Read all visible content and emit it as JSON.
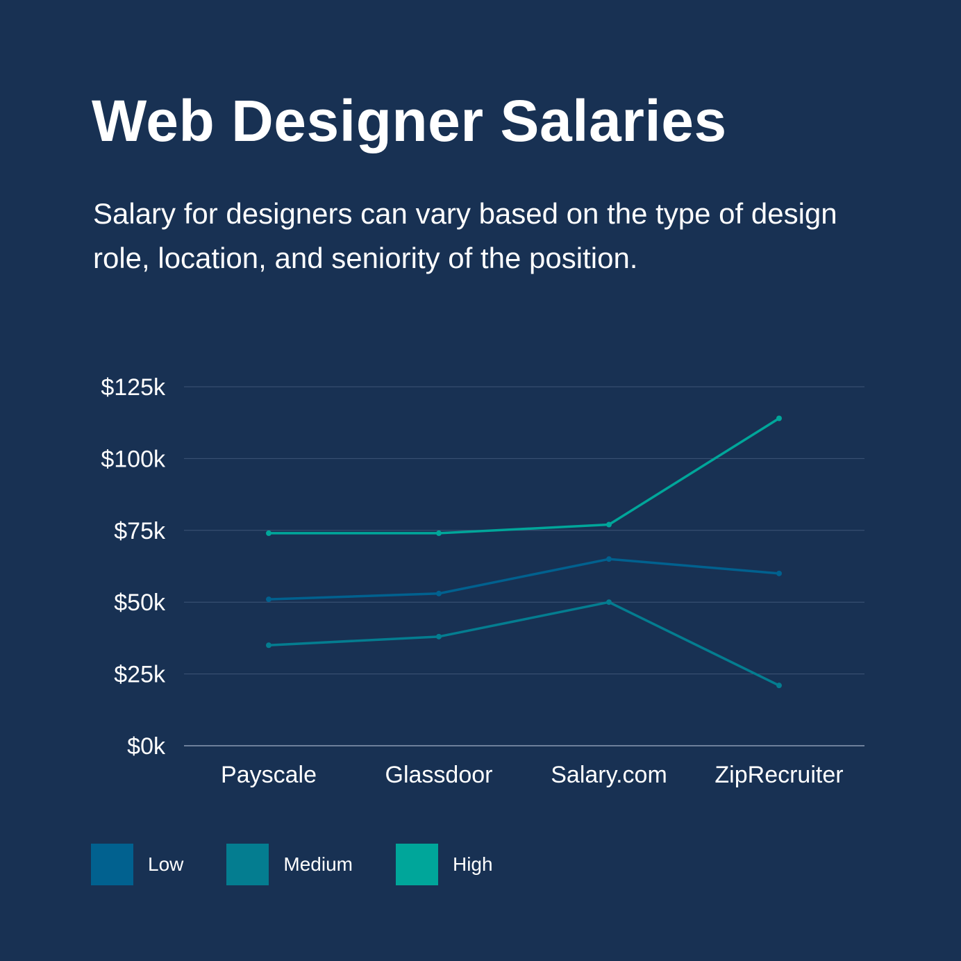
{
  "title": "Web Designer Salaries",
  "subtitle": "Salary for designers can vary based on the type of design role, location, and seniority of the position.",
  "chart_data": {
    "type": "line",
    "categories": [
      "Payscale",
      "Glassdoor",
      "Salary.com",
      "ZipRecruiter"
    ],
    "y_ticks": [
      "$0k",
      "$25k",
      "$50k",
      "$75k",
      "$100k",
      "$125k"
    ],
    "ylim": [
      0,
      125
    ],
    "grid": true,
    "legend_position": "bottom-left",
    "series": [
      {
        "name": "Low",
        "color": "#01618f",
        "values": [
          51,
          53,
          65,
          60
        ]
      },
      {
        "name": "Medium",
        "color": "#047d90",
        "values": [
          35,
          38,
          50,
          21
        ]
      },
      {
        "name": "High",
        "color": "#00a69a",
        "values": [
          74,
          74,
          77,
          114
        ]
      }
    ]
  }
}
